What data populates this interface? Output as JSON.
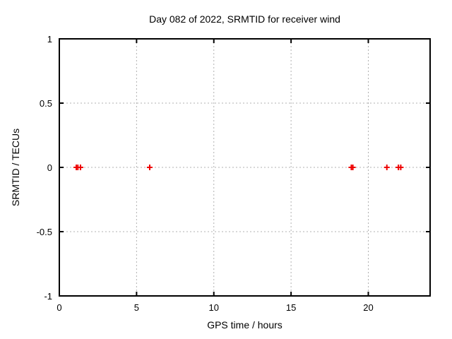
{
  "chart_data": {
    "type": "scatter",
    "title": "Day 082 of 2022, SRMTID for receiver wind",
    "xlabel": "GPS time / hours",
    "ylabel": "SRMTID / TECUs",
    "xlim": [
      0,
      24
    ],
    "ylim": [
      -1,
      1
    ],
    "xticks": [
      0,
      5,
      10,
      15,
      20
    ],
    "xtick_labels": [
      "0",
      "5",
      "10",
      "15",
      "20"
    ],
    "yticks": [
      -1,
      -0.5,
      0,
      0.5,
      1
    ],
    "ytick_labels": [
      "-1",
      "-0.5",
      "0",
      "0.5",
      "1"
    ],
    "grid": true,
    "legend": "none",
    "marker": "plus",
    "series": [
      {
        "name": "SRMTID",
        "color": "#ee0000",
        "points": [
          {
            "x": 1.1,
            "y": 0
          },
          {
            "x": 1.2,
            "y": 0
          },
          {
            "x": 1.37,
            "y": 0
          },
          {
            "x": 5.85,
            "y": 0
          },
          {
            "x": 18.9,
            "y": 0
          },
          {
            "x": 19.0,
            "y": 0
          },
          {
            "x": 21.2,
            "y": 0
          },
          {
            "x": 21.95,
            "y": 0
          },
          {
            "x": 22.1,
            "y": 0
          }
        ]
      }
    ]
  },
  "colors": {
    "background": "#ffffff",
    "axis": "#000000",
    "grid": "#b0b0b0",
    "text": "#000000",
    "marker": "#ee0000"
  }
}
